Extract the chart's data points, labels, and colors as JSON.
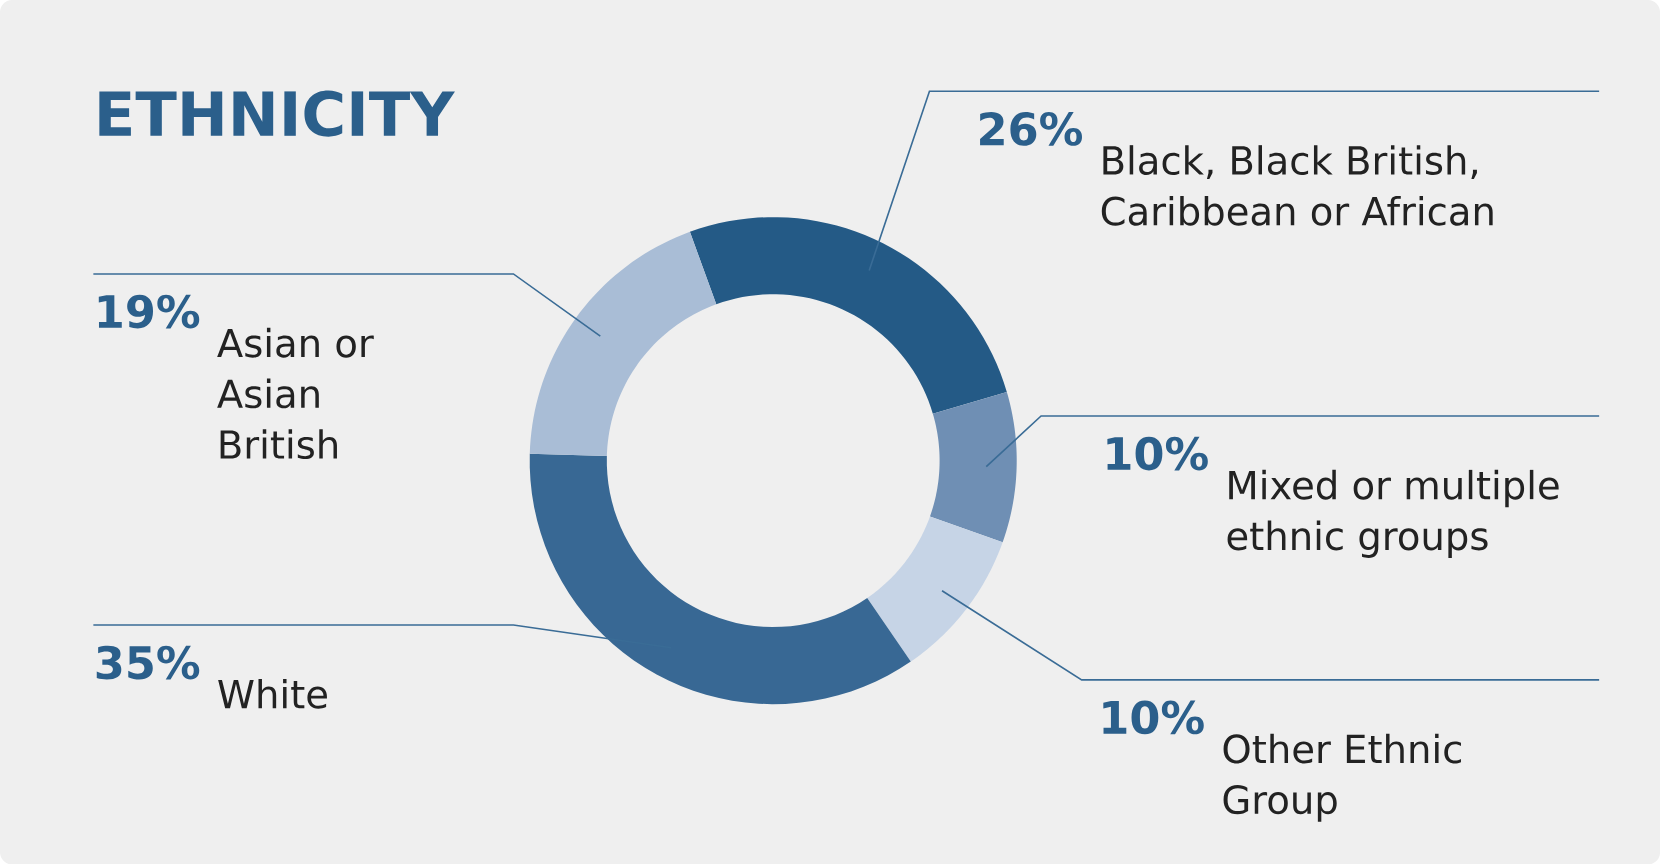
{
  "chart_data": {
    "type": "donut",
    "title": "ETHNICITY",
    "categories": [
      "Black, Black British, Caribbean or African",
      "Mixed or multiple ethnic groups",
      "Other Ethnic Group",
      "White",
      "Asian or Asian British"
    ],
    "values": [
      26,
      10,
      10,
      35,
      19
    ],
    "value_labels": [
      "26%",
      "10%",
      "10%",
      "35%",
      "19%"
    ],
    "colors": [
      "#245a86",
      "#6f8fb4",
      "#c6d4e6",
      "#386894",
      "#a9bdd6"
    ]
  }
}
